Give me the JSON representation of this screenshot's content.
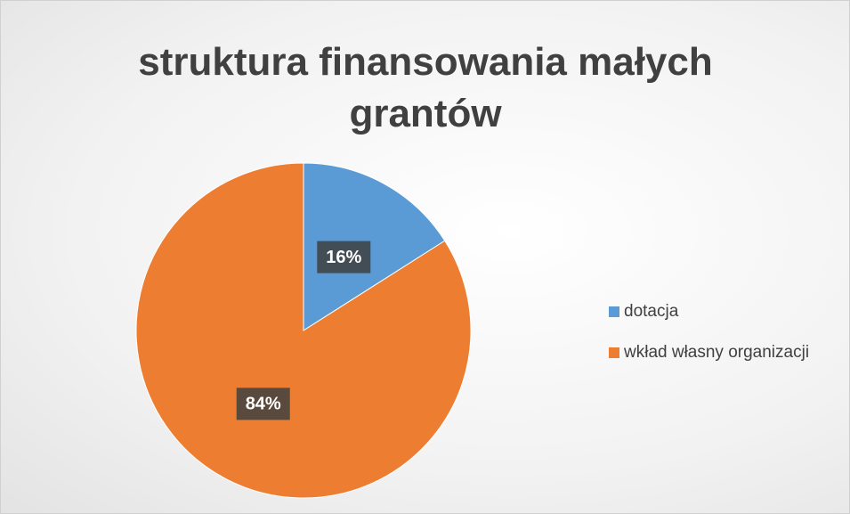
{
  "chart_data": {
    "type": "pie",
    "title": "struktura finansowania małych grantów",
    "categories": [
      "dotacja",
      "wkład własny organizacji"
    ],
    "values": [
      16,
      84
    ],
    "value_labels": [
      "16%",
      "84%"
    ],
    "colors": [
      "#5b9bd5",
      "#ed7d31"
    ],
    "legend": "right"
  }
}
